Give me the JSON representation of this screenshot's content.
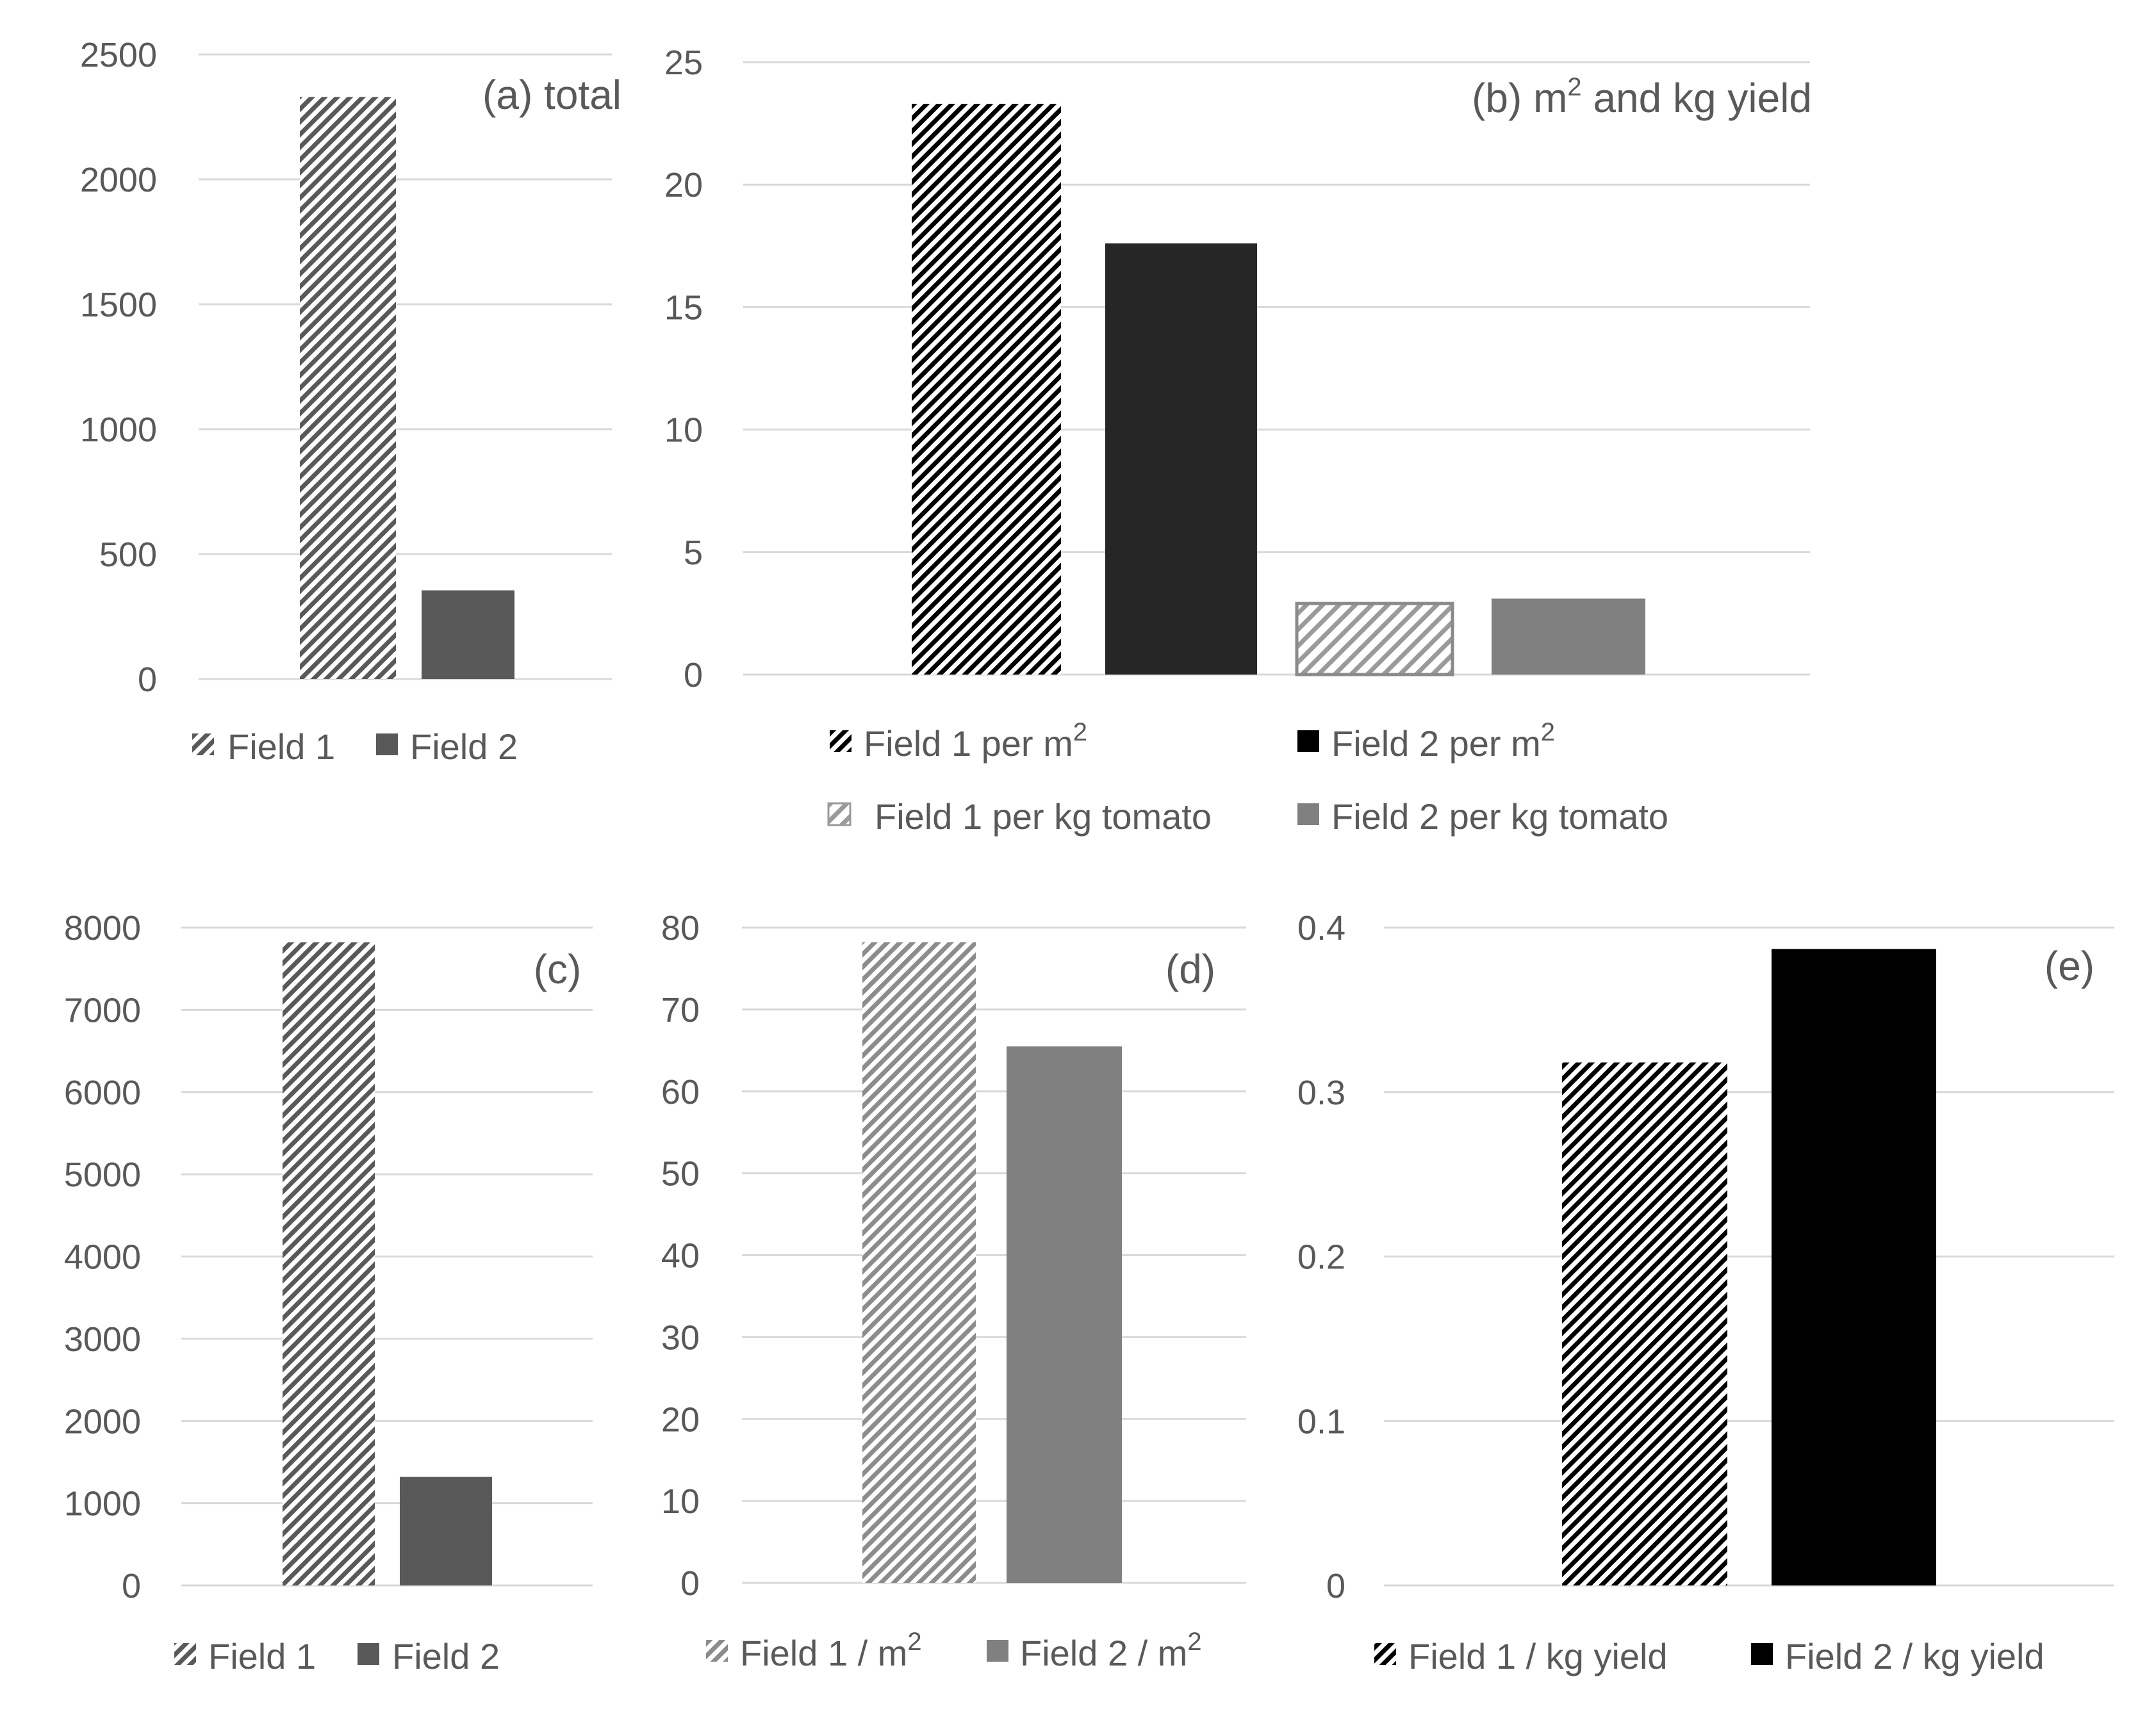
{
  "chart_data": [
    {
      "id": "a",
      "type": "bar",
      "title": "(a) total",
      "categories": [
        "Field 1",
        "Field 2"
      ],
      "values": [
        2330,
        355
      ],
      "ylim": [
        0,
        2500
      ],
      "yticks": [
        0,
        500,
        1000,
        1500,
        2000,
        2500
      ],
      "ytick_labels": [
        "0",
        "500",
        "1000",
        "1500",
        "2000",
        "2500"
      ],
      "grid": true,
      "legend": [
        {
          "label": "Field 1",
          "swatch": "hatch-gray"
        },
        {
          "label": "Field 2",
          "swatch": "solid-darkgray"
        }
      ]
    },
    {
      "id": "b",
      "type": "bar",
      "title_main": "(b) m",
      "title_sup": "2",
      "title_rest": " and kg yield",
      "categories": [
        "Field 1 per m2",
        "Field 2 per m2",
        "Field 1 per kg tomato",
        "Field 2 per kg tomato"
      ],
      "values": [
        23.3,
        17.6,
        2.9,
        3.1
      ],
      "ylim": [
        0,
        25
      ],
      "yticks": [
        0,
        5,
        10,
        15,
        20,
        25
      ],
      "ytick_labels": [
        "0",
        "5",
        "10",
        "15",
        "20",
        "25"
      ],
      "grid": true,
      "legend": [
        {
          "label": "Field 1 per m",
          "sup": "2",
          "swatch": "hatch-black"
        },
        {
          "label": "Field 2 per m",
          "sup": "2",
          "swatch": "solid-black"
        },
        {
          "label": " Field 1 per kg tomato",
          "sup": "",
          "swatch": "hatch-light"
        },
        {
          "label": "Field 2 per kg tomato",
          "sup": "",
          "swatch": "solid-gray"
        }
      ]
    },
    {
      "id": "c",
      "type": "bar",
      "title": "(c)",
      "categories": [
        "Field 1",
        "Field 2"
      ],
      "values": [
        7820,
        1320
      ],
      "ylim": [
        0,
        8000
      ],
      "yticks": [
        0,
        1000,
        2000,
        3000,
        4000,
        5000,
        6000,
        7000,
        8000
      ],
      "ytick_labels": [
        "0",
        "1000",
        "2000",
        "3000",
        "4000",
        "5000",
        "6000",
        "7000",
        "8000"
      ],
      "grid": true,
      "legend": [
        {
          "label": "Field 1",
          "swatch": "hatch-gray"
        },
        {
          "label": "Field 2",
          "swatch": "solid-darkgray"
        }
      ]
    },
    {
      "id": "d",
      "type": "bar",
      "title": "(d)",
      "categories": [
        "Field 1 / m2",
        "Field 2 / m2"
      ],
      "values": [
        78.2,
        65.5
      ],
      "ylim": [
        0,
        80
      ],
      "yticks": [
        0,
        10,
        20,
        30,
        40,
        50,
        60,
        70,
        80
      ],
      "ytick_labels": [
        "0",
        "10",
        "20",
        "30",
        "40",
        "50",
        "60",
        "70",
        "80"
      ],
      "grid": true,
      "legend": [
        {
          "label": "Field 1 / m",
          "sup": "2",
          "swatch": "hatch-lightgray"
        },
        {
          "label": "Field 2 / m",
          "sup": "2",
          "swatch": "solid-gray"
        }
      ]
    },
    {
      "id": "e",
      "type": "bar",
      "title": "(e)",
      "categories": [
        "Field 1 / kg yield",
        "Field 2 / kg yield"
      ],
      "values": [
        0.318,
        0.387
      ],
      "ylim": [
        0,
        0.4
      ],
      "yticks": [
        0,
        0.1,
        0.2,
        0.3,
        0.4
      ],
      "ytick_labels": [
        "0",
        "0.1",
        "0.2",
        "0.3",
        "0.4"
      ],
      "grid": true,
      "legend": [
        {
          "label": "Field 1 / kg yield",
          "swatch": "hatch-black"
        },
        {
          "label": "Field 2 / kg yield",
          "swatch": "solid-black"
        }
      ]
    }
  ],
  "colors": {
    "grid": "#d9d9d9",
    "text": "#595959",
    "solid_black": "#000000",
    "solid_nearblack": "#262626",
    "solid_darkgray": "#595959",
    "solid_gray": "#808080"
  }
}
